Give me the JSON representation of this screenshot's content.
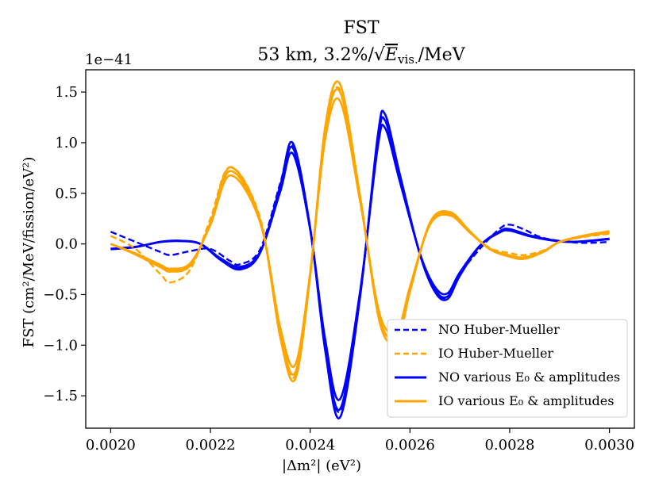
{
  "chart_data": {
    "type": "line",
    "title": "FST",
    "subtitle": "53 km, 3.2%/√E_vis./MeV",
    "subtitle_parts": {
      "prefix": "53 km, 3.2%/",
      "sqrt": "√",
      "var": "E",
      "sub": "vis.",
      "suffix": "/MeV"
    },
    "offset_text": "1e−41",
    "xlabel": "|Δm²| (eV²)",
    "ylabel": "FST (cm²/MeV/fission/eV²)",
    "xlim": [
      0.00195,
      0.00305
    ],
    "ylim": [
      -1.82,
      1.72
    ],
    "x_ticks": [
      0.002,
      0.0022,
      0.0024,
      0.0026,
      0.0028,
      0.003
    ],
    "x_tick_labels": [
      "0.0020",
      "0.0022",
      "0.0024",
      "0.0026",
      "0.0028",
      "0.0030"
    ],
    "y_ticks": [
      -1.5,
      -1.0,
      -0.5,
      0.0,
      0.5,
      1.0,
      1.5
    ],
    "y_tick_labels": [
      "−1.5",
      "−1.0",
      "−0.5",
      "0.0",
      "0.5",
      "1.0",
      "1.5"
    ],
    "legend_position": "lower-right",
    "colors": {
      "NO": "#0000ff",
      "IO": "#ffa500"
    },
    "legend": [
      {
        "label": "NO Huber-Mueller",
        "color": "#0000ff",
        "style": "dashed"
      },
      {
        "label": "IO Huber-Mueller",
        "color": "#ffa500",
        "style": "dashed"
      },
      {
        "label": "NO various E₀ & amplitudes",
        "color": "#0000ff",
        "style": "solid"
      },
      {
        "label": "IO various E₀ & amplitudes",
        "color": "#ffa500",
        "style": "solid"
      }
    ],
    "series": [
      {
        "name": "NO Huber-Mueller",
        "ordering": "NO",
        "style": "dashed",
        "x": [
          0.002,
          0.00205,
          0.0021,
          0.00212,
          0.00216,
          0.0022,
          0.00224,
          0.00226,
          0.0023,
          0.00234,
          0.002365,
          0.0024,
          0.00243,
          0.00246,
          0.0025,
          0.002535,
          0.00255,
          0.00258,
          0.00262,
          0.00265,
          0.002675,
          0.0027,
          0.00274,
          0.00278,
          0.0028,
          0.00283,
          0.00286,
          0.0029,
          0.00295,
          0.003
        ],
        "y": [
          0.12,
          0.02,
          -0.08,
          -0.11,
          -0.07,
          -0.05,
          -0.17,
          -0.2,
          -0.05,
          0.6,
          0.97,
          0.15,
          -1.0,
          -1.65,
          -0.5,
          1.0,
          1.22,
          0.65,
          -0.1,
          -0.45,
          -0.53,
          -0.3,
          -0.05,
          0.15,
          0.19,
          0.14,
          0.07,
          0.03,
          0.01,
          0.02
        ]
      },
      {
        "name": "IO Huber-Mueller",
        "ordering": "IO",
        "style": "dashed",
        "x": [
          0.002,
          0.00205,
          0.0021,
          0.00212,
          0.00216,
          0.0022,
          0.00224,
          0.0023,
          0.00234,
          0.00237,
          0.0024,
          0.00243,
          0.00246,
          0.0025,
          0.00254,
          0.002575,
          0.0026,
          0.00264,
          0.00268,
          0.00272,
          0.00276,
          0.0028,
          0.00283,
          0.00287,
          0.0029,
          0.00295,
          0.003
        ],
        "y": [
          0.08,
          -0.05,
          -0.3,
          -0.38,
          -0.25,
          0.25,
          0.76,
          0.25,
          -0.9,
          -1.3,
          -0.3,
          1.1,
          1.52,
          0.45,
          -0.75,
          -0.9,
          -0.45,
          0.2,
          0.3,
          0.12,
          -0.04,
          -0.09,
          -0.11,
          -0.06,
          0.02,
          0.07,
          0.1
        ]
      },
      {
        "name": "NO various E₀ & amplitudes",
        "ordering": "NO",
        "style": "solid",
        "x": [
          0.002,
          0.00205,
          0.0021,
          0.00214,
          0.00218,
          0.00222,
          0.00226,
          0.0023,
          0.00234,
          0.002365,
          0.0024,
          0.00243,
          0.00246,
          0.0025,
          0.002535,
          0.00255,
          0.00258,
          0.00262,
          0.00265,
          0.002675,
          0.0027,
          0.00274,
          0.00278,
          0.0028,
          0.00284,
          0.00288,
          0.00292,
          0.00296,
          0.003
        ],
        "y": [
          -0.05,
          -0.03,
          0.02,
          0.03,
          0.0,
          -0.15,
          -0.24,
          -0.08,
          0.55,
          0.95,
          0.15,
          -1.0,
          -1.63,
          -0.5,
          1.0,
          1.22,
          0.65,
          -0.1,
          -0.45,
          -0.52,
          -0.3,
          -0.02,
          0.12,
          0.14,
          0.08,
          0.04,
          0.02,
          0.03,
          0.05
        ]
      },
      {
        "name": "IO various E₀ & amplitudes",
        "ordering": "IO",
        "style": "solid",
        "x": [
          0.002,
          0.00205,
          0.0021,
          0.00212,
          0.00216,
          0.0022,
          0.00224,
          0.0023,
          0.00234,
          0.00237,
          0.0024,
          0.00243,
          0.00246,
          0.0025,
          0.00254,
          0.002575,
          0.0026,
          0.00264,
          0.00268,
          0.00272,
          0.00276,
          0.0028,
          0.00283,
          0.00287,
          0.0029,
          0.00295,
          0.003
        ],
        "y": [
          0.0,
          -0.1,
          -0.22,
          -0.26,
          -0.2,
          0.2,
          0.72,
          0.22,
          -0.88,
          -1.27,
          -0.3,
          1.1,
          1.5,
          0.45,
          -0.75,
          -0.9,
          -0.45,
          0.2,
          0.3,
          0.12,
          -0.05,
          -0.12,
          -0.14,
          -0.07,
          0.02,
          0.08,
          0.12
        ]
      }
    ]
  }
}
